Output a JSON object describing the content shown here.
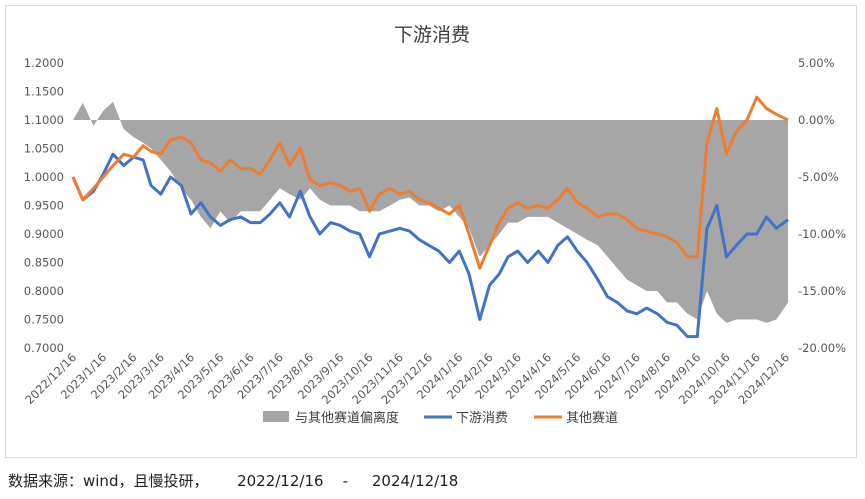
{
  "chart_data": {
    "type": "line",
    "title": "下游消费",
    "legend_position": "bottom",
    "grid": false,
    "y_left": {
      "ylim": [
        0.7,
        1.2
      ],
      "ticks": [
        "0.7000",
        "0.7500",
        "0.8000",
        "0.8500",
        "0.9000",
        "0.9500",
        "1.0000",
        "1.0500",
        "1.1000",
        "1.1500",
        "1.2000"
      ]
    },
    "y_right": {
      "ylim": [
        -20,
        5
      ],
      "ticks": [
        "-20.00%",
        "-15.00%",
        "-10.00%",
        "-5.00%",
        "0.00%",
        "5.00%"
      ]
    },
    "x_tick_labels": [
      "2022/12/16",
      "2023/1/16",
      "2023/2/16",
      "2023/3/16",
      "2023/4/16",
      "2023/5/16",
      "2023/6/16",
      "2023/7/16",
      "2023/8/16",
      "2023/9/16",
      "2023/10/16",
      "2023/11/16",
      "2023/12/16",
      "2024/1/16",
      "2024/2/16",
      "2024/3/16",
      "2024/4/16",
      "2024/5/16",
      "2024/6/16",
      "2024/7/16",
      "2024/8/16",
      "2024/9/16",
      "2024/10/16",
      "2024/11/16",
      "2024/12/16"
    ],
    "series": [
      {
        "name": "与其他赛道偏离度",
        "kind": "area",
        "axis": "right",
        "color": "#a6a6a6",
        "x": [
          "2022/12/16",
          "2022/12/26",
          "2023/1/6",
          "2023/1/16",
          "2023/1/26",
          "2023/2/6",
          "2023/2/16",
          "2023/2/26",
          "2023/3/6",
          "2023/3/16",
          "2023/3/26",
          "2023/4/6",
          "2023/4/16",
          "2023/4/26",
          "2023/5/6",
          "2023/5/16",
          "2023/5/26",
          "2023/6/6",
          "2023/6/16",
          "2023/6/26",
          "2023/7/6",
          "2023/7/16",
          "2023/7/26",
          "2023/8/6",
          "2023/8/16",
          "2023/8/26",
          "2023/9/6",
          "2023/9/16",
          "2023/9/26",
          "2023/10/6",
          "2023/10/16",
          "2023/10/26",
          "2023/11/6",
          "2023/11/16",
          "2023/11/26",
          "2023/12/6",
          "2023/12/16",
          "2023/12/26",
          "2024/1/6",
          "2024/1/16",
          "2024/1/26",
          "2024/2/6",
          "2024/2/16",
          "2024/2/26",
          "2024/3/6",
          "2024/3/16",
          "2024/3/26",
          "2024/4/6",
          "2024/4/16",
          "2024/4/26",
          "2024/5/6",
          "2024/5/16",
          "2024/5/26",
          "2024/6/6",
          "2024/6/16",
          "2024/6/26",
          "2024/7/6",
          "2024/7/16",
          "2024/7/26",
          "2024/8/6",
          "2024/8/16",
          "2024/8/26",
          "2024/9/6",
          "2024/9/16",
          "2024/9/26",
          "2024/10/6",
          "2024/10/16",
          "2024/10/26",
          "2024/11/6",
          "2024/11/16",
          "2024/11/26",
          "2024/12/6",
          "2024/12/18"
        ],
        "values": [
          0,
          1.5,
          -0.5,
          0.8,
          1.6,
          -0.8,
          -1.5,
          -2,
          -2.5,
          -3.5,
          -4.5,
          -6,
          -7,
          -8.5,
          -9.5,
          -8,
          -9,
          -8,
          -8,
          -8,
          -7,
          -6,
          -6.5,
          -7,
          -6,
          -7,
          -7.5,
          -7.5,
          -7.5,
          -8,
          -8,
          -8,
          -7.5,
          -7,
          -6.8,
          -7.5,
          -7.5,
          -8,
          -7.5,
          -8.5,
          -9.5,
          -12,
          -11,
          -10,
          -9,
          -9,
          -8.5,
          -8.5,
          -8.5,
          -9,
          -9.5,
          -10,
          -10.5,
          -11,
          -12,
          -13,
          -14,
          -14.5,
          -15,
          -15,
          -16,
          -16,
          -17,
          -17.5,
          -15,
          -17,
          -17.8,
          -17.5,
          -17.5,
          -17.5,
          -17.8,
          -17.5,
          -16
        ]
      },
      {
        "name": "下游消费",
        "kind": "line",
        "axis": "left",
        "color": "#4472c4",
        "x": [
          "2022/12/16",
          "2022/12/26",
          "2023/1/6",
          "2023/1/16",
          "2023/1/26",
          "2023/2/6",
          "2023/2/16",
          "2023/2/26",
          "2023/3/6",
          "2023/3/16",
          "2023/3/26",
          "2023/4/6",
          "2023/4/16",
          "2023/4/26",
          "2023/5/6",
          "2023/5/16",
          "2023/5/26",
          "2023/6/6",
          "2023/6/16",
          "2023/6/26",
          "2023/7/6",
          "2023/7/16",
          "2023/7/26",
          "2023/8/6",
          "2023/8/16",
          "2023/8/26",
          "2023/9/6",
          "2023/9/16",
          "2023/9/26",
          "2023/10/6",
          "2023/10/16",
          "2023/10/26",
          "2023/11/6",
          "2023/11/16",
          "2023/11/26",
          "2023/12/6",
          "2023/12/16",
          "2023/12/26",
          "2024/1/6",
          "2024/1/16",
          "2024/1/26",
          "2024/2/6",
          "2024/2/16",
          "2024/2/26",
          "2024/3/6",
          "2024/3/16",
          "2024/3/26",
          "2024/4/6",
          "2024/4/16",
          "2024/4/26",
          "2024/5/6",
          "2024/5/16",
          "2024/5/26",
          "2024/6/6",
          "2024/6/16",
          "2024/6/26",
          "2024/7/6",
          "2024/7/16",
          "2024/7/26",
          "2024/8/6",
          "2024/8/16",
          "2024/8/26",
          "2024/9/6",
          "2024/9/16",
          "2024/9/26",
          "2024/10/6",
          "2024/10/16",
          "2024/10/26",
          "2024/11/6",
          "2024/11/16",
          "2024/11/26",
          "2024/12/6",
          "2024/12/18"
        ],
        "values": [
          1.0,
          0.96,
          0.975,
          1.005,
          1.04,
          1.02,
          1.035,
          1.03,
          0.985,
          0.97,
          1.0,
          0.985,
          0.935,
          0.955,
          0.93,
          0.915,
          0.925,
          0.93,
          0.92,
          0.92,
          0.935,
          0.955,
          0.93,
          0.975,
          0.93,
          0.9,
          0.92,
          0.915,
          0.905,
          0.9,
          0.86,
          0.9,
          0.905,
          0.91,
          0.905,
          0.89,
          0.88,
          0.87,
          0.85,
          0.87,
          0.83,
          0.75,
          0.81,
          0.83,
          0.86,
          0.87,
          0.85,
          0.87,
          0.85,
          0.88,
          0.895,
          0.87,
          0.85,
          0.82,
          0.79,
          0.78,
          0.765,
          0.76,
          0.77,
          0.76,
          0.745,
          0.74,
          0.72,
          0.72,
          0.91,
          0.95,
          0.86,
          0.88,
          0.9,
          0.9,
          0.93,
          0.91,
          0.925
        ]
      },
      {
        "name": "其他赛道",
        "kind": "line",
        "axis": "left",
        "color": "#ed7d31",
        "x": [
          "2022/12/16",
          "2022/12/26",
          "2023/1/6",
          "2023/1/16",
          "2023/1/26",
          "2023/2/6",
          "2023/2/16",
          "2023/2/26",
          "2023/3/6",
          "2023/3/16",
          "2023/3/26",
          "2023/4/6",
          "2023/4/16",
          "2023/4/26",
          "2023/5/6",
          "2023/5/16",
          "2023/5/26",
          "2023/6/6",
          "2023/6/16",
          "2023/6/26",
          "2023/7/6",
          "2023/7/16",
          "2023/7/26",
          "2023/8/6",
          "2023/8/16",
          "2023/8/26",
          "2023/9/6",
          "2023/9/16",
          "2023/9/26",
          "2023/10/6",
          "2023/10/16",
          "2023/10/26",
          "2023/11/6",
          "2023/11/16",
          "2023/11/26",
          "2023/12/6",
          "2023/12/16",
          "2023/12/26",
          "2024/1/6",
          "2024/1/16",
          "2024/1/26",
          "2024/2/6",
          "2024/2/16",
          "2024/2/26",
          "2024/3/6",
          "2024/3/16",
          "2024/3/26",
          "2024/4/6",
          "2024/4/16",
          "2024/4/26",
          "2024/5/6",
          "2024/5/16",
          "2024/5/26",
          "2024/6/6",
          "2024/6/16",
          "2024/6/26",
          "2024/7/6",
          "2024/7/16",
          "2024/7/26",
          "2024/8/6",
          "2024/8/16",
          "2024/8/26",
          "2024/9/6",
          "2024/9/16",
          "2024/9/26",
          "2024/10/6",
          "2024/10/16",
          "2024/10/26",
          "2024/11/6",
          "2024/11/16",
          "2024/11/26",
          "2024/12/6",
          "2024/12/18"
        ],
        "values": [
          1.0,
          0.96,
          0.98,
          1.0,
          1.02,
          1.04,
          1.035,
          1.055,
          1.045,
          1.04,
          1.065,
          1.07,
          1.06,
          1.03,
          1.025,
          1.01,
          1.03,
          1.015,
          1.015,
          1.005,
          1.03,
          1.06,
          1.02,
          1.05,
          0.995,
          0.985,
          0.99,
          0.985,
          0.975,
          0.98,
          0.94,
          0.97,
          0.98,
          0.97,
          0.975,
          0.96,
          0.955,
          0.945,
          0.935,
          0.95,
          0.9,
          0.84,
          0.88,
          0.92,
          0.945,
          0.955,
          0.945,
          0.95,
          0.945,
          0.96,
          0.98,
          0.955,
          0.945,
          0.93,
          0.935,
          0.935,
          0.925,
          0.91,
          0.905,
          0.9,
          0.895,
          0.885,
          0.86,
          0.86,
          1.06,
          1.12,
          1.04,
          1.08,
          1.1,
          1.14,
          1.12,
          1.11,
          1.1
        ]
      }
    ]
  },
  "source_note": "数据来源：wind，且慢投研，      2022/12/16    -     2024/12/18"
}
